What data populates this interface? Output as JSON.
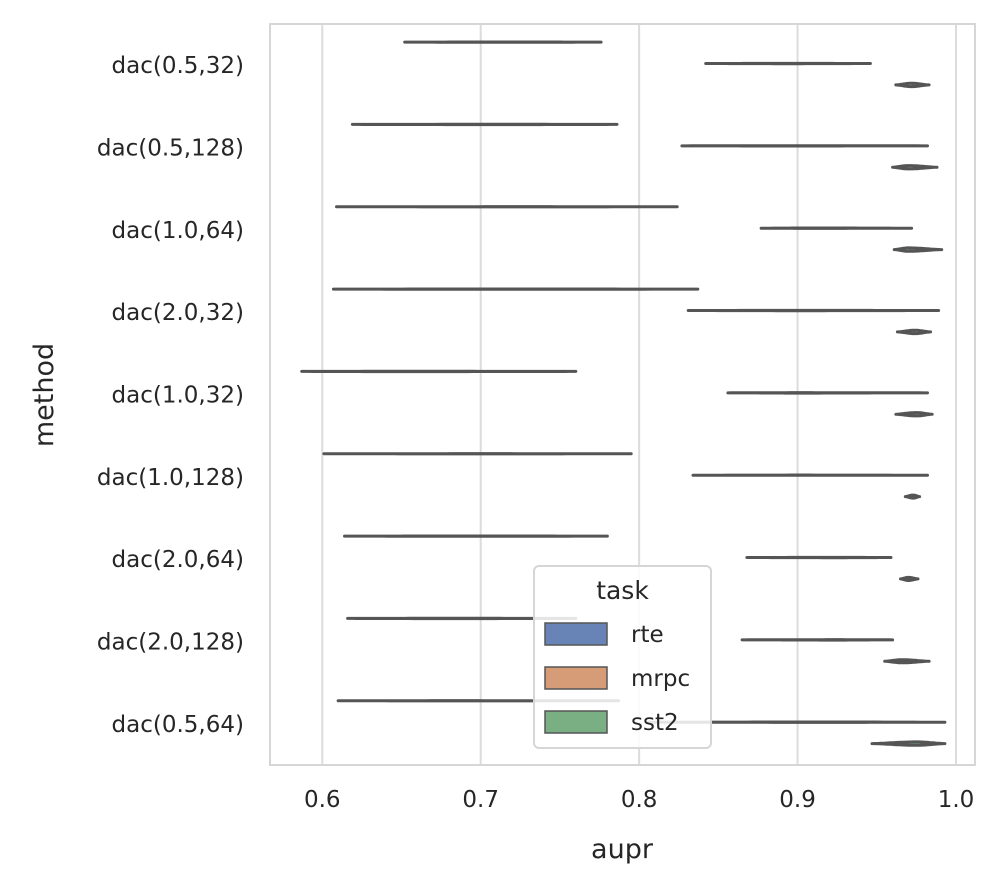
{
  "chart_data": {
    "type": "violin",
    "orientation": "horizontal",
    "xlabel": "aupr",
    "ylabel": "method",
    "xlim": [
      0.567,
      1.012
    ],
    "x_ticks": [
      0.6,
      0.7,
      0.8,
      0.9,
      1.0
    ],
    "x_tick_labels": [
      "0.6",
      "0.7",
      "0.8",
      "0.9",
      "1.0"
    ],
    "grid": "vertical",
    "categories": [
      "dac(0.5,32)",
      "dac(0.5,128)",
      "dac(1.0,64)",
      "dac(2.0,32)",
      "dac(1.0,32)",
      "dac(1.0,128)",
      "dac(2.0,64)",
      "dac(2.0,128)",
      "dac(0.5,64)"
    ],
    "legend": {
      "title": "task",
      "placement": "bottom-center",
      "entries": [
        "rte",
        "mrpc",
        "sst2"
      ]
    },
    "series": [
      {
        "name": "rte",
        "color": "#6883b5",
        "violins": [
          {
            "min": 0.652,
            "max": 0.776,
            "peak": 0.72,
            "width": 0.004
          },
          {
            "min": 0.619,
            "max": 0.786,
            "peak": 0.71,
            "width": 0.004
          },
          {
            "min": 0.609,
            "max": 0.824,
            "peak": 0.725,
            "width": 0.004
          },
          {
            "min": 0.607,
            "max": 0.837,
            "peak": 0.72,
            "width": 0.004
          },
          {
            "min": 0.587,
            "max": 0.76,
            "peak": 0.65,
            "width": 0.008
          },
          {
            "min": 0.601,
            "max": 0.795,
            "peak": 0.7,
            "width": 0.004
          },
          {
            "min": 0.614,
            "max": 0.78,
            "peak": 0.7,
            "width": 0.004
          },
          {
            "min": 0.616,
            "max": 0.76,
            "peak": 0.68,
            "width": 0.008
          },
          {
            "min": 0.61,
            "max": 0.787,
            "peak": 0.68,
            "width": 0.008
          }
        ]
      },
      {
        "name": "mrpc",
        "color": "#d69c77",
        "violins": [
          {
            "min": 0.842,
            "max": 0.946,
            "peak": 0.895,
            "width": 0.01
          },
          {
            "min": 0.827,
            "max": 0.982,
            "peak": 0.89,
            "width": 0.01
          },
          {
            "min": 0.877,
            "max": 0.972,
            "peak": 0.91,
            "width": 0.03
          },
          {
            "min": 0.831,
            "max": 0.989,
            "peak": 0.9,
            "width": 0.01
          },
          {
            "min": 0.856,
            "max": 0.982,
            "peak": 0.9,
            "width": 0.03
          },
          {
            "min": 0.834,
            "max": 0.982,
            "peak": 0.9,
            "width": 0.01
          },
          {
            "min": 0.868,
            "max": 0.959,
            "peak": 0.925,
            "width": 0.02
          },
          {
            "min": 0.865,
            "max": 0.96,
            "peak": 0.925,
            "width": 0.03
          },
          {
            "min": 0.806,
            "max": 0.993,
            "peak": 0.92,
            "width": 0.03
          }
        ]
      },
      {
        "name": "sst2",
        "color": "#7aae83",
        "violins": [
          {
            "min": 0.962,
            "max": 0.983,
            "peak": 0.972,
            "width": 0.24
          },
          {
            "min": 0.96,
            "max": 0.988,
            "peak": 0.97,
            "width": 0.24
          },
          {
            "min": 0.961,
            "max": 0.991,
            "peak": 0.97,
            "width": 0.24
          },
          {
            "min": 0.963,
            "max": 0.984,
            "peak": 0.974,
            "width": 0.24
          },
          {
            "min": 0.962,
            "max": 0.985,
            "peak": 0.975,
            "width": 0.24
          },
          {
            "min": 0.968,
            "max": 0.977,
            "peak": 0.973,
            "width": 0.22
          },
          {
            "min": 0.965,
            "max": 0.976,
            "peak": 0.97,
            "width": 0.22
          },
          {
            "min": 0.955,
            "max": 0.983,
            "peak": 0.966,
            "width": 0.22
          },
          {
            "min": 0.947,
            "max": 0.993,
            "peak": 0.975,
            "width": 0.24
          }
        ]
      }
    ]
  }
}
